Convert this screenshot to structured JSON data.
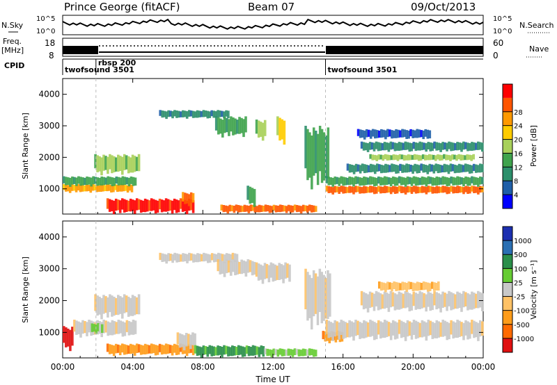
{
  "header": {
    "station": "Prince George (fitACF)",
    "beam": "Beam 07",
    "date": "09/Oct/2013"
  },
  "side_labels": {
    "nsky": "N.Sky",
    "nsky_top": "10^5",
    "nsky_bottom": "10^0",
    "nsearch": "N.Search",
    "nsearch_top": "10^5",
    "nsearch_bottom": "10^0",
    "freq": "Freq.",
    "freq_unit": "[MHz]",
    "freq_top": "18",
    "freq_bottom": "8",
    "nave": "Nave",
    "nave_top": "60",
    "nave_bottom": "0",
    "cpid": "CPID"
  },
  "cpid_segments": [
    {
      "start_hour": 0.0,
      "label": "twofsound 3501"
    },
    {
      "start_hour": 1.9,
      "label": "rbsp 200"
    },
    {
      "start_hour": 15.0,
      "label": "twofsound 3501"
    }
  ],
  "colors": {
    "power": [
      "#0000ff",
      "#1f5fa8",
      "#2c8f6b",
      "#3fa34d",
      "#a8d05a",
      "#ffcc00",
      "#ff9900",
      "#ff5500",
      "#ff0000"
    ],
    "velocity": [
      "#e01010",
      "#ff6a00",
      "#ff9c1a",
      "#ffc266",
      "#c8c8c8",
      "#66cc33",
      "#2a8f4a",
      "#2a6fb3",
      "#1c2fb0"
    ]
  },
  "chart_data": [
    {
      "type": "heatmap",
      "name": "power",
      "xlabel": "",
      "ylabel": "Slant Range [km]",
      "xlim": [
        0,
        24
      ],
      "ylim": [
        200,
        4500
      ],
      "yticks": [
        "1000",
        "2000",
        "3000",
        "4000"
      ],
      "colorbar_label": "Power [dB]",
      "colorbar_ticks": [
        "4",
        "8",
        "12",
        "16",
        "20",
        "24",
        "28"
      ],
      "regions": [
        {
          "t0": 0.0,
          "t1": 4.0,
          "r0": 900,
          "r1": 1150,
          "level": 6
        },
        {
          "t0": 0.0,
          "t1": 4.2,
          "r0": 1100,
          "r1": 1400,
          "level": 3
        },
        {
          "t0": 1.8,
          "t1": 4.4,
          "r0": 1500,
          "r1": 2100,
          "level": 4
        },
        {
          "t0": 2.5,
          "t1": 7.5,
          "r0": 250,
          "r1": 700,
          "level": 8
        },
        {
          "t0": 6.8,
          "t1": 7.5,
          "r0": 500,
          "r1": 900,
          "level": 7
        },
        {
          "t0": 5.5,
          "t1": 9.5,
          "r0": 3250,
          "r1": 3500,
          "level": 2
        },
        {
          "t0": 8.7,
          "t1": 10.5,
          "r0": 2700,
          "r1": 3300,
          "level": 3
        },
        {
          "t0": 11.0,
          "t1": 11.6,
          "r0": 2600,
          "r1": 3200,
          "level": 4
        },
        {
          "t0": 12.2,
          "t1": 12.7,
          "r0": 2500,
          "r1": 3300,
          "level": 5
        },
        {
          "t0": 13.8,
          "t1": 15.2,
          "r0": 1200,
          "r1": 3000,
          "level": 3
        },
        {
          "t0": 9.0,
          "t1": 14.5,
          "r0": 250,
          "r1": 500,
          "level": 7
        },
        {
          "t0": 10.5,
          "t1": 11.0,
          "r0": 500,
          "r1": 1100,
          "level": 3
        },
        {
          "t0": 15.0,
          "t1": 24.0,
          "r0": 850,
          "r1": 1100,
          "level": 7
        },
        {
          "t0": 15.0,
          "t1": 24.0,
          "r0": 1100,
          "r1": 1400,
          "level": 3
        },
        {
          "t0": 16.2,
          "t1": 24.0,
          "r0": 1500,
          "r1": 1800,
          "level": 2
        },
        {
          "t0": 17.5,
          "t1": 23.5,
          "r0": 1900,
          "r1": 2100,
          "level": 4
        },
        {
          "t0": 17.0,
          "t1": 24.0,
          "r0": 2200,
          "r1": 2500,
          "level": 2
        },
        {
          "t0": 16.8,
          "t1": 21.0,
          "r0": 2600,
          "r1": 2900,
          "level": 1
        }
      ]
    },
    {
      "type": "heatmap",
      "name": "velocity",
      "xlabel": "Time UT",
      "ylabel": "Slant Range [km]",
      "xlim": [
        0,
        24
      ],
      "ylim": [
        200,
        4500
      ],
      "xticks": [
        "00:00",
        "04:00",
        "08:00",
        "12:00",
        "16:00",
        "20:00",
        "00:00"
      ],
      "yticks": [
        "1000",
        "2000",
        "3000",
        "4000"
      ],
      "colorbar_label": "Velocity [m s⁻¹]",
      "colorbar_ticks": [
        "-1000",
        "-500",
        "-100",
        "-25",
        "25",
        "100",
        "500",
        "1000"
      ],
      "regions": [
        {
          "t0": 0.0,
          "t1": 0.6,
          "r0": 500,
          "r1": 1200,
          "level": 0
        },
        {
          "t0": 0.6,
          "t1": 4.2,
          "r0": 900,
          "r1": 1400,
          "level": 4
        },
        {
          "t0": 1.8,
          "t1": 4.4,
          "r0": 1500,
          "r1": 2200,
          "level": 4
        },
        {
          "t0": 1.5,
          "t1": 2.3,
          "r0": 1000,
          "r1": 1300,
          "level": 5
        },
        {
          "t0": 2.5,
          "t1": 7.5,
          "r0": 300,
          "r1": 650,
          "level": 2
        },
        {
          "t0": 6.5,
          "t1": 7.6,
          "r0": 500,
          "r1": 1000,
          "level": 4
        },
        {
          "t0": 5.5,
          "t1": 10.0,
          "r0": 3200,
          "r1": 3500,
          "level": 4
        },
        {
          "t0": 8.8,
          "t1": 11.0,
          "r0": 2800,
          "r1": 3300,
          "level": 4
        },
        {
          "t0": 11.0,
          "t1": 13.0,
          "r0": 2600,
          "r1": 3200,
          "level": 4
        },
        {
          "t0": 7.5,
          "t1": 11.5,
          "r0": 250,
          "r1": 600,
          "level": 6
        },
        {
          "t0": 11.5,
          "t1": 14.5,
          "r0": 250,
          "r1": 500,
          "level": 5
        },
        {
          "t0": 13.8,
          "t1": 15.3,
          "r0": 1300,
          "r1": 3000,
          "level": 4
        },
        {
          "t0": 14.8,
          "t1": 16.0,
          "r0": 700,
          "r1": 1050,
          "level": 2
        },
        {
          "t0": 15.0,
          "t1": 24.0,
          "r0": 800,
          "r1": 1400,
          "level": 4
        },
        {
          "t0": 17.0,
          "t1": 24.0,
          "r0": 1700,
          "r1": 2300,
          "level": 4
        },
        {
          "t0": 18.0,
          "t1": 21.5,
          "r0": 2300,
          "r1": 2600,
          "level": 3
        }
      ]
    }
  ]
}
